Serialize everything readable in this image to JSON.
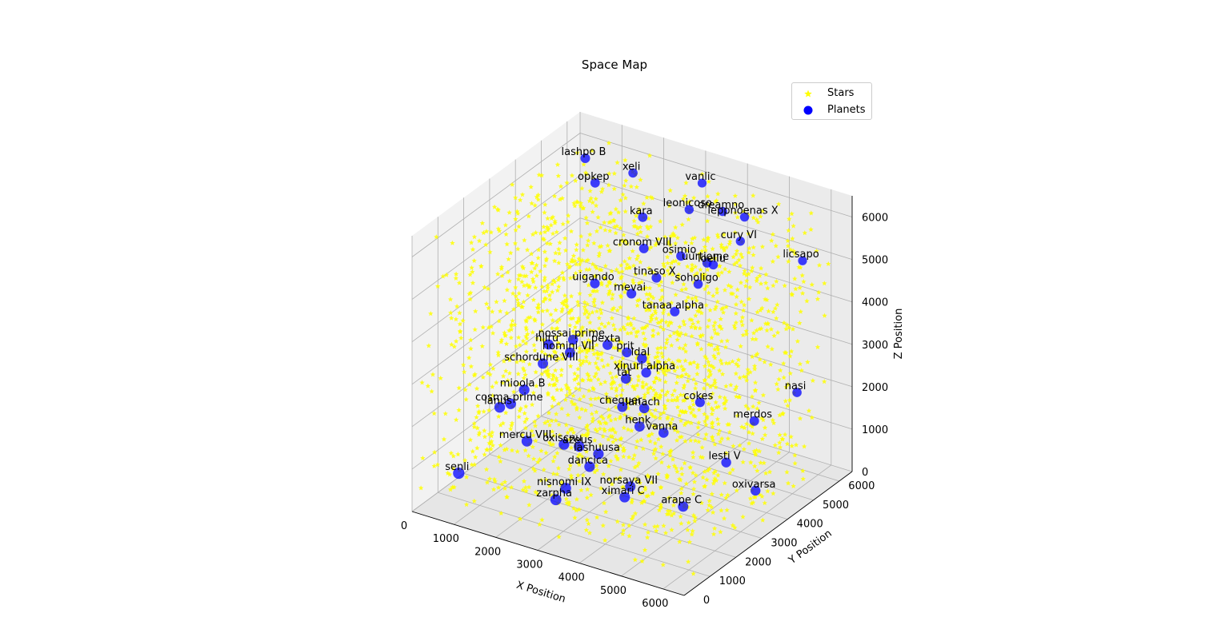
{
  "title": "Space Map",
  "legend": {
    "stars_label": "Stars",
    "planets_label": "Planets"
  },
  "colors": {
    "stars": "#ffff00",
    "planets": "#0000ff",
    "pane": "#f2f2f2",
    "grid": "#b0b0b0"
  },
  "chart_data": {
    "type": "scatter",
    "projection": "3d",
    "title": "Space Map",
    "xlabel": "X Position",
    "ylabel": "Y Position",
    "zlabel": "Z Position",
    "xlim": [
      0,
      6500
    ],
    "ylim": [
      0,
      6500
    ],
    "zlim": [
      0,
      6500
    ],
    "xticks": [
      0,
      1000,
      2000,
      3000,
      4000,
      5000,
      6000
    ],
    "yticks": [
      0,
      1000,
      2000,
      3000,
      4000,
      5000,
      6000
    ],
    "zticks": [
      0,
      1000,
      2000,
      3000,
      4000,
      5000,
      6000
    ],
    "grid": true,
    "legend_position": "top-right",
    "series": [
      {
        "name": "Stars",
        "marker": "star",
        "color": "#ffff00",
        "count_approx": 2000,
        "distribution": "uniform over the full cube"
      },
      {
        "name": "Planets",
        "marker": "circle",
        "color": "#0000ff",
        "points": [
          {
            "label": "xeli",
            "x": 1850,
            "y": 5550,
            "z": 6050
          },
          {
            "label": "vanlic",
            "x": 3100,
            "y": 6200,
            "z": 5900
          },
          {
            "label": "lashpo B",
            "x": 1050,
            "y": 5000,
            "z": 6400
          },
          {
            "label": "opkep",
            "x": 1100,
            "y": 5300,
            "z": 5700
          },
          {
            "label": "kara",
            "x": 2300,
            "y": 5200,
            "z": 5300
          },
          {
            "label": "leonicoso",
            "x": 3100,
            "y": 5700,
            "z": 5500
          },
          {
            "label": "dreamno",
            "x": 3900,
            "y": 5700,
            "z": 5700
          },
          {
            "label": "leppnoenas X",
            "x": 4300,
            "y": 5900,
            "z": 5600
          },
          {
            "label": "cury VI",
            "x": 4200,
            "y": 5900,
            "z": 5000
          },
          {
            "label": "licsapo",
            "x": 5500,
            "y": 6200,
            "z": 4800
          },
          {
            "label": "cronom VIII",
            "x": 2450,
            "y": 5000,
            "z": 4700
          },
          {
            "label": "osimio",
            "x": 3150,
            "y": 5300,
            "z": 4600
          },
          {
            "label": "uurtiome",
            "x": 3650,
            "y": 5500,
            "z": 4500
          },
          {
            "label": "loeliu",
            "x": 3800,
            "y": 5500,
            "z": 4500
          },
          {
            "label": "tinaso X",
            "x": 2750,
            "y": 5000,
            "z": 4100
          },
          {
            "label": "soholigo",
            "x": 3500,
            "y": 5400,
            "z": 4000
          },
          {
            "label": "uigando",
            "x": 1650,
            "y": 4400,
            "z": 3900
          },
          {
            "label": "mevai",
            "x": 2400,
            "y": 4600,
            "z": 3800
          },
          {
            "label": "tanaa alpha",
            "x": 3250,
            "y": 4900,
            "z": 3500
          },
          {
            "label": "nasi",
            "x": 5800,
            "y": 5500,
            "z": 2100
          },
          {
            "label": "nossai prime",
            "x": 1500,
            "y": 3800,
            "z": 2800
          },
          {
            "label": "hiiru",
            "x": 1100,
            "y": 3500,
            "z": 2700
          },
          {
            "label": "homini VII",
            "x": 1550,
            "y": 3600,
            "z": 2600
          },
          {
            "label": "pexta",
            "x": 2200,
            "y": 4000,
            "z": 2800
          },
          {
            "label": "prit",
            "x": 2600,
            "y": 4100,
            "z": 2700
          },
          {
            "label": "idal",
            "x": 2900,
            "y": 4200,
            "z": 2600
          },
          {
            "label": "xinuri alpha",
            "x": 3000,
            "y": 4200,
            "z": 2300
          },
          {
            "label": "schordune VIII",
            "x": 1150,
            "y": 3200,
            "z": 2400
          },
          {
            "label": "tat",
            "x": 2700,
            "y": 3900,
            "z": 2200
          },
          {
            "label": "cokes",
            "x": 4100,
            "y": 4500,
            "z": 1800
          },
          {
            "label": "merdos",
            "x": 5150,
            "y": 4900,
            "z": 1500
          },
          {
            "label": "mioola B",
            "x": 950,
            "y": 2800,
            "z": 1900
          },
          {
            "label": "chequer",
            "x": 2800,
            "y": 3600,
            "z": 1700
          },
          {
            "label": "lanach",
            "x": 3200,
            "y": 3800,
            "z": 1700
          },
          {
            "label": "henk",
            "x": 3150,
            "y": 3700,
            "z": 1300
          },
          {
            "label": "vanna",
            "x": 3600,
            "y": 3900,
            "z": 1200
          },
          {
            "label": "cosma prime",
            "x": 750,
            "y": 2600,
            "z": 1600
          },
          {
            "label": "lanus",
            "x": 550,
            "y": 2500,
            "z": 1500
          },
          {
            "label": "mercu VIII",
            "x": 1200,
            "y": 2500,
            "z": 900
          },
          {
            "label": "oxiscnu",
            "x": 1900,
            "y": 2800,
            "z": 900
          },
          {
            "label": "azeus",
            "x": 2200,
            "y": 2900,
            "z": 900
          },
          {
            "label": "lashuusa",
            "x": 2600,
            "y": 3000,
            "z": 800
          },
          {
            "label": "lesti V",
            "x": 4850,
            "y": 4300,
            "z": 700
          },
          {
            "label": "dancica",
            "x": 2450,
            "y": 2900,
            "z": 500
          },
          {
            "label": "oxivarsa",
            "x": 5550,
            "y": 4300,
            "z": 250
          },
          {
            "label": "norsaya VII",
            "x": 3300,
            "y": 3100,
            "z": 200
          },
          {
            "label": "senli",
            "x": 250,
            "y": 1400,
            "z": 350
          },
          {
            "label": "nisnomi IX",
            "x": 2250,
            "y": 2300,
            "z": 200
          },
          {
            "label": "ximari C",
            "x": 3350,
            "y": 2800,
            "z": 100
          },
          {
            "label": "zarpha",
            "x": 2200,
            "y": 2000,
            "z": 50
          },
          {
            "label": "arape C",
            "x": 4500,
            "y": 3200,
            "z": 50
          }
        ]
      }
    ]
  }
}
